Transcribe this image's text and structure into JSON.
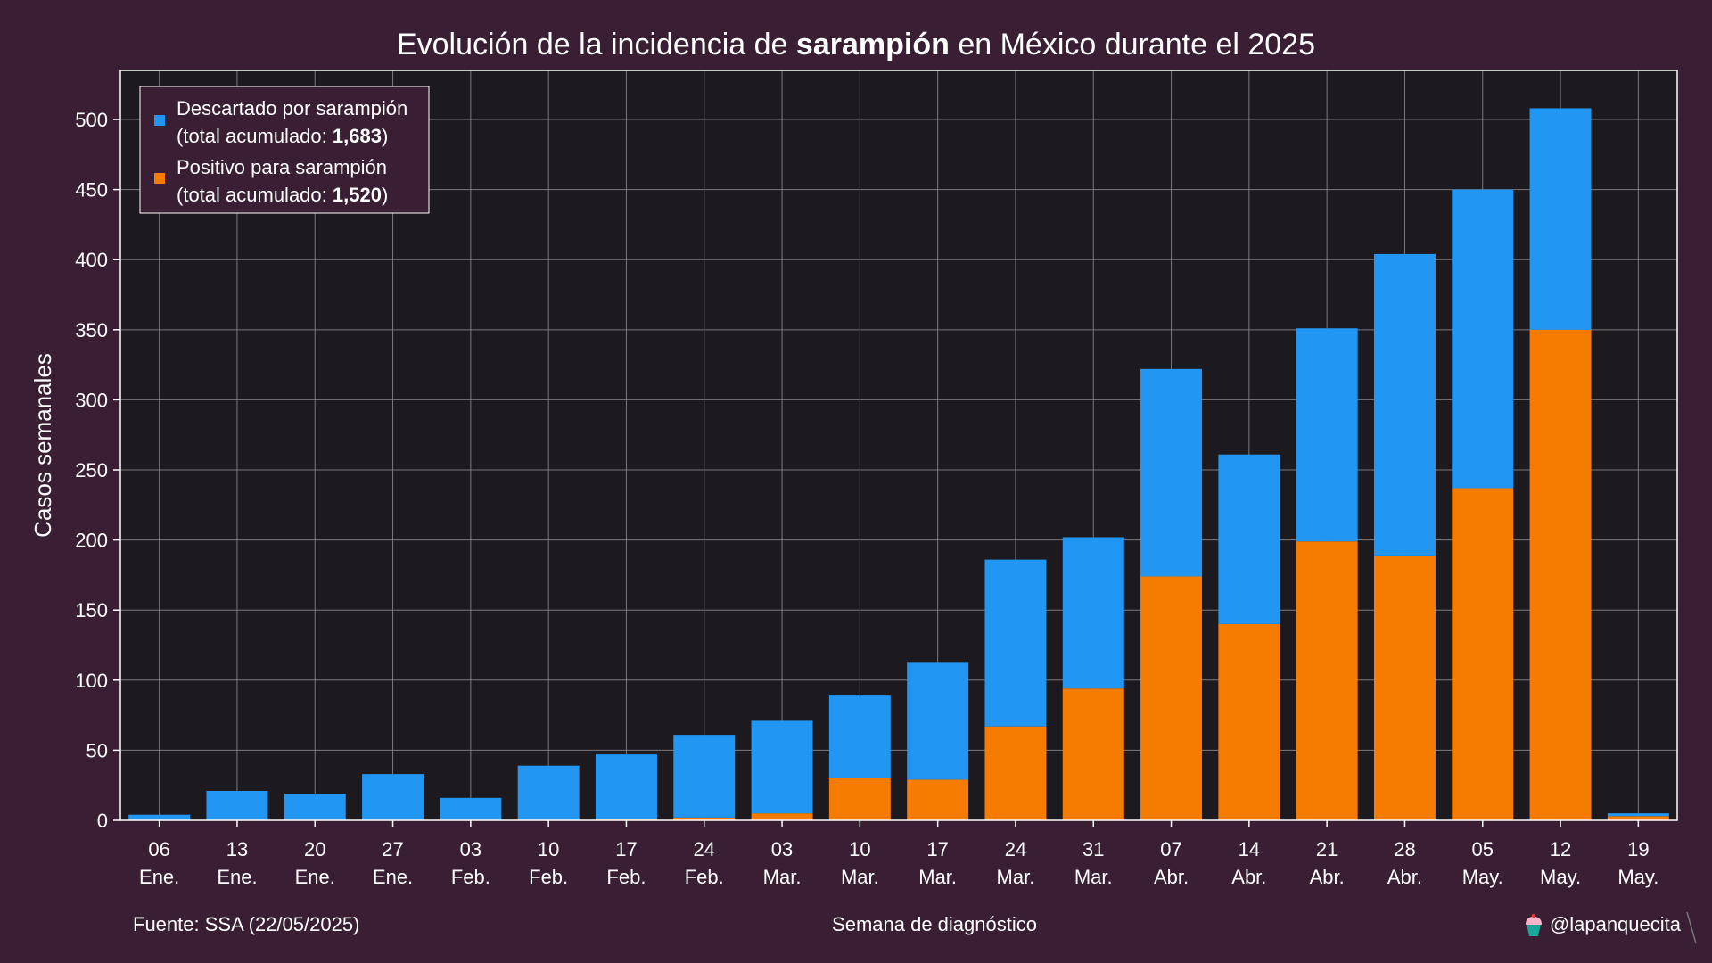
{
  "colors": {
    "background": "#3a1f34",
    "plot_background": "#1c1a1f",
    "grid": "#8c8a8f",
    "discarded": "#2196f3",
    "positive": "#f57c00"
  },
  "title": {
    "prefix": "Evolución de la incidencia de ",
    "bold": "sarampión",
    "suffix": " en México durante el 2025"
  },
  "legend": {
    "items": [
      {
        "line1": "Descartado por sarampión",
        "line2_prefix": "(total acumulado: ",
        "line2_bold": "1,683",
        "line2_suffix": ")",
        "color": "#2196f3"
      },
      {
        "line1": "Positivo para sarampión",
        "line2_prefix": "(total acumulado: ",
        "line2_bold": "1,520",
        "line2_suffix": ")",
        "color": "#f57c00"
      }
    ]
  },
  "footer": {
    "source": "Fuente: SSA (22/05/2025)",
    "credit": "@lapanquecita",
    "credit_icon": "cupcake-icon"
  },
  "chart_data": {
    "type": "bar",
    "stacked": true,
    "xlabel": "Semana de diagnóstico",
    "ylabel": "Casos semanales",
    "ylim": [
      0,
      535
    ],
    "yticks": [
      0,
      50,
      100,
      150,
      200,
      250,
      300,
      350,
      400,
      450,
      500
    ],
    "grid": true,
    "legend_position": "top-left",
    "categories": [
      [
        "06",
        "Ene."
      ],
      [
        "13",
        "Ene."
      ],
      [
        "20",
        "Ene."
      ],
      [
        "27",
        "Ene."
      ],
      [
        "03",
        "Feb."
      ],
      [
        "10",
        "Feb."
      ],
      [
        "17",
        "Feb."
      ],
      [
        "24",
        "Feb."
      ],
      [
        "03",
        "Mar."
      ],
      [
        "10",
        "Mar."
      ],
      [
        "17",
        "Mar."
      ],
      [
        "24",
        "Mar."
      ],
      [
        "31",
        "Mar."
      ],
      [
        "07",
        "Abr."
      ],
      [
        "14",
        "Abr."
      ],
      [
        "21",
        "Abr."
      ],
      [
        "28",
        "Abr."
      ],
      [
        "05",
        "May."
      ],
      [
        "12",
        "May."
      ],
      [
        "19",
        "May."
      ]
    ],
    "series": [
      {
        "name": "Positivo para sarampión",
        "color": "#f57c00",
        "values": [
          0,
          0,
          0,
          0,
          0,
          0,
          1,
          2,
          5,
          30,
          29,
          67,
          94,
          174,
          140,
          199,
          189,
          237,
          350,
          3
        ]
      },
      {
        "name": "Descartado por sarampión",
        "color": "#2196f3",
        "values": [
          4,
          21,
          19,
          33,
          16,
          39,
          46,
          59,
          66,
          59,
          84,
          119,
          108,
          148,
          121,
          152,
          215,
          213,
          158,
          2
        ]
      }
    ]
  }
}
